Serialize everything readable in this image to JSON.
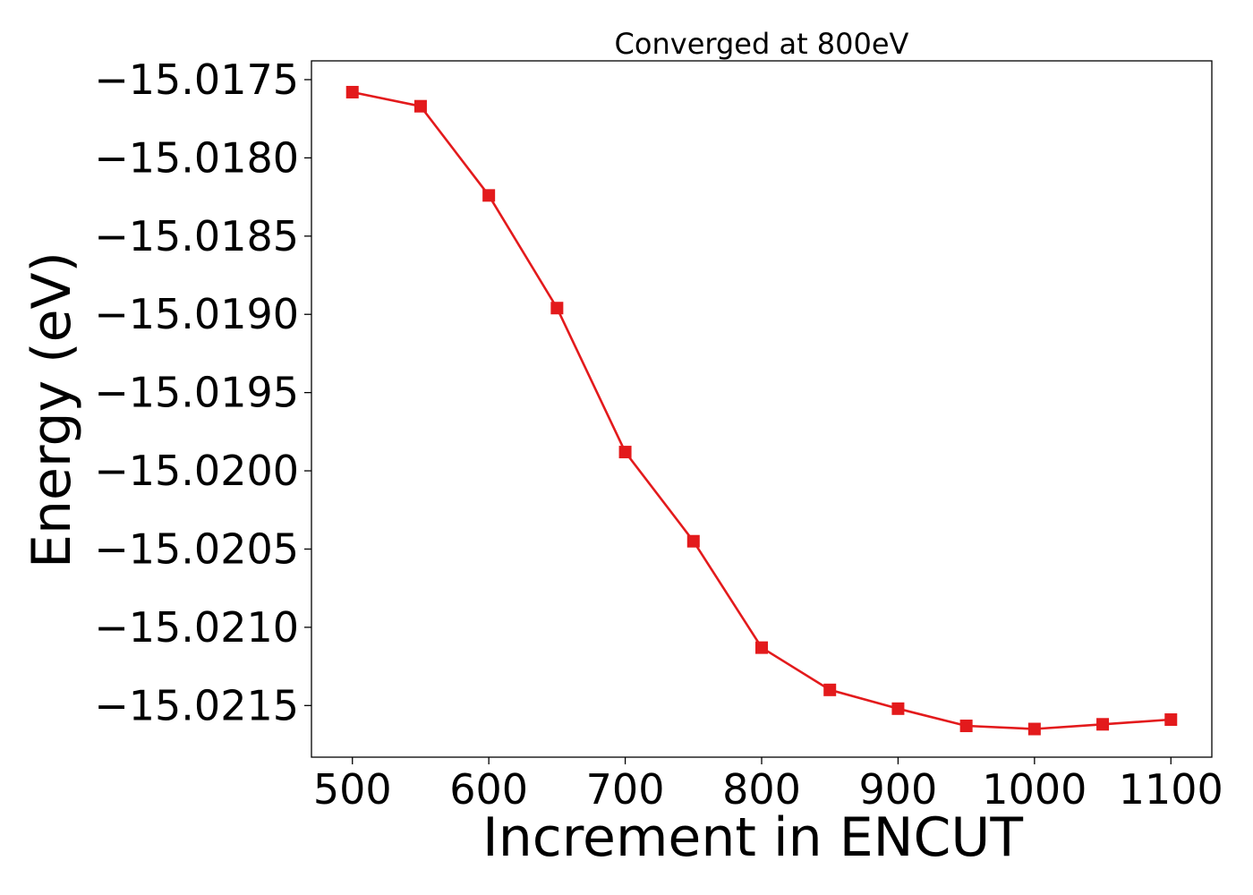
{
  "chart_data": {
    "type": "line",
    "title": "Converged at 800eV",
    "xlabel": "Increment in ENCUT",
    "ylabel": "Energy (eV)",
    "xlim": [
      470,
      1130
    ],
    "ylim": [
      -15.02183,
      -15.01738
    ],
    "xticks": [
      500,
      600,
      700,
      800,
      900,
      1000,
      1100
    ],
    "xtick_labels": [
      "500",
      "600",
      "700",
      "800",
      "900",
      "1000",
      "1100"
    ],
    "yticks": [
      -15.0175,
      -15.018,
      -15.0185,
      -15.019,
      -15.0195,
      -15.02,
      -15.0205,
      -15.021,
      -15.0215
    ],
    "ytick_labels": [
      "−15.0175",
      "−15.0180",
      "−15.0185",
      "−15.0190",
      "−15.0195",
      "−15.0200",
      "−15.0205",
      "−15.0210",
      "−15.0215"
    ],
    "grid": false,
    "series": [
      {
        "color": "#e31a1c",
        "marker": "square",
        "x": [
          500,
          550,
          600,
          650,
          700,
          750,
          800,
          850,
          900,
          950,
          1000,
          1050,
          1100
        ],
        "y": [
          -15.01758,
          -15.01767,
          -15.01824,
          -15.01896,
          -15.01988,
          -15.02045,
          -15.02113,
          -15.0214,
          -15.02152,
          -15.02163,
          -15.02165,
          -15.02162,
          -15.02159
        ]
      }
    ]
  }
}
